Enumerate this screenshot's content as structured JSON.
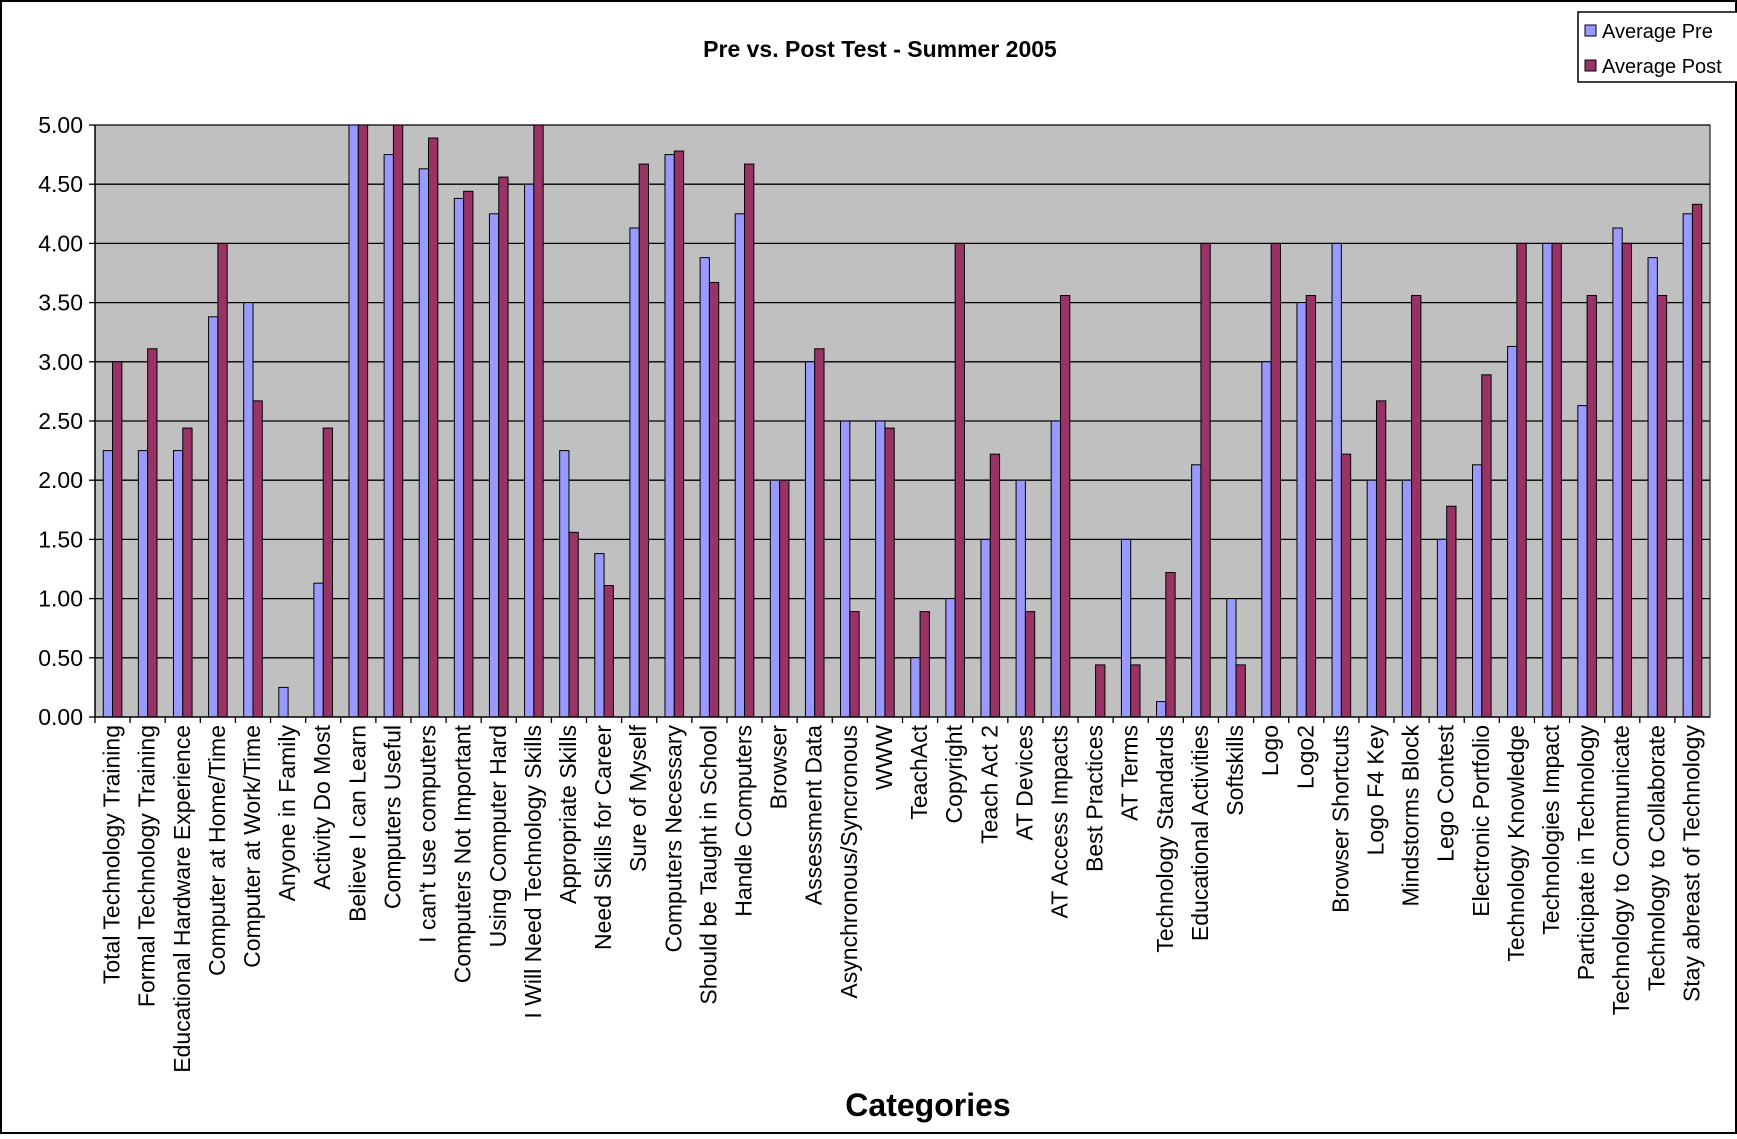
{
  "chart_data": {
    "type": "bar",
    "title": "Pre vs. Post Test - Summer 2005",
    "xlabel": "Categories",
    "ylabel": "",
    "ylim": [
      0,
      5
    ],
    "yticks": [
      "0.00",
      "0.50",
      "1.00",
      "1.50",
      "2.00",
      "2.50",
      "3.00",
      "3.50",
      "4.00",
      "4.50",
      "5.00"
    ],
    "grid": true,
    "legend_position": "top-right",
    "categories": [
      "Total Technology Training",
      "Formal Technology Training",
      "Educational Hardware Experience",
      "Computer at Home/Time",
      "Computer at Work/Time",
      "Anyone in Family",
      "Activity Do Most",
      "Believe I can Learn",
      "Computers Useful",
      "I can't use computers",
      "Computers Not  Important",
      "Using Computer Hard",
      "I Will  Need Technology Skills",
      "Appropriate Skills",
      "Need Skills for Career",
      "Sure of Myself",
      "Computers Necessary",
      "Should be Taught in School",
      "Handle Computers",
      "Browser",
      "Assessment Data",
      "Asynchronous/Syncronous",
      "WWW",
      "TeachAct",
      "Copyright",
      "Teach Act 2",
      "AT Devices",
      "AT Access Impacts",
      "Best Practices",
      "AT Terms",
      "Technology Standards",
      "Educational Activities",
      "Softskills",
      "Logo",
      "Logo2",
      "Browser Shortcuts",
      "Logo F4 Key",
      "Mindstorms Block",
      "Lego Contest",
      "Electronic Portfolio",
      "Technology Knowledge",
      "Technologies Impact",
      "Participate in Technology",
      "Technology to Communicate",
      "Technology to Collaborate",
      "Stay abreast of Technology"
    ],
    "series": [
      {
        "name": "Average Pre",
        "color": "#9999FF",
        "values": [
          2.25,
          2.25,
          2.25,
          3.38,
          3.5,
          0.25,
          1.13,
          5.0,
          4.75,
          4.63,
          4.38,
          4.25,
          4.5,
          2.25,
          1.38,
          4.13,
          4.75,
          3.88,
          4.25,
          2.0,
          3.0,
          2.5,
          2.5,
          0.5,
          1.0,
          1.5,
          2.0,
          2.5,
          0.0,
          1.5,
          0.13,
          2.13,
          1.0,
          3.0,
          3.5,
          4.0,
          2.0,
          2.0,
          1.5,
          2.13,
          3.13,
          4.0,
          2.63,
          4.13,
          3.88,
          4.25
        ]
      },
      {
        "name": "Average Post",
        "color": "#993366",
        "values": [
          3.0,
          3.11,
          2.44,
          4.0,
          2.67,
          0.0,
          2.44,
          5.0,
          5.0,
          4.89,
          4.44,
          4.56,
          5.0,
          1.56,
          1.11,
          4.67,
          4.78,
          3.67,
          4.67,
          2.0,
          3.11,
          0.89,
          2.44,
          0.89,
          4.0,
          2.22,
          0.89,
          3.56,
          0.44,
          0.44,
          1.22,
          4.0,
          0.44,
          4.0,
          3.56,
          2.22,
          2.67,
          3.56,
          1.78,
          2.89,
          4.0,
          4.0,
          3.56,
          4.0,
          3.56,
          4.33
        ]
      }
    ],
    "plot_background": "#C0C0C0"
  }
}
